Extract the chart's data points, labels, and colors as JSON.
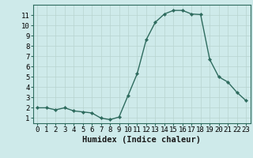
{
  "x": [
    0,
    1,
    2,
    3,
    4,
    5,
    6,
    7,
    8,
    9,
    10,
    11,
    12,
    13,
    14,
    15,
    16,
    17,
    18,
    19,
    20,
    21,
    22,
    23
  ],
  "y": [
    2.0,
    2.0,
    1.8,
    2.0,
    1.7,
    1.6,
    1.5,
    1.0,
    0.85,
    1.1,
    3.2,
    5.3,
    8.6,
    10.3,
    11.1,
    11.45,
    11.45,
    11.1,
    11.05,
    6.7,
    5.0,
    4.5,
    3.5,
    2.7
  ],
  "line_color": "#2e6b5e",
  "marker": "D",
  "marker_size": 2.2,
  "bg_color": "#ceeaea",
  "grid_color": "#b8d4d0",
  "xlabel": "Humidex (Indice chaleur)",
  "xlim": [
    -0.5,
    23.5
  ],
  "ylim": [
    0.5,
    12.0
  ],
  "xticks": [
    0,
    1,
    2,
    3,
    4,
    5,
    6,
    7,
    8,
    9,
    10,
    11,
    12,
    13,
    14,
    15,
    16,
    17,
    18,
    19,
    20,
    21,
    22,
    23
  ],
  "yticks": [
    1,
    2,
    3,
    4,
    5,
    6,
    7,
    8,
    9,
    10,
    11
  ],
  "xlabel_fontsize": 7.5,
  "tick_fontsize": 6.5,
  "linewidth": 1.0
}
